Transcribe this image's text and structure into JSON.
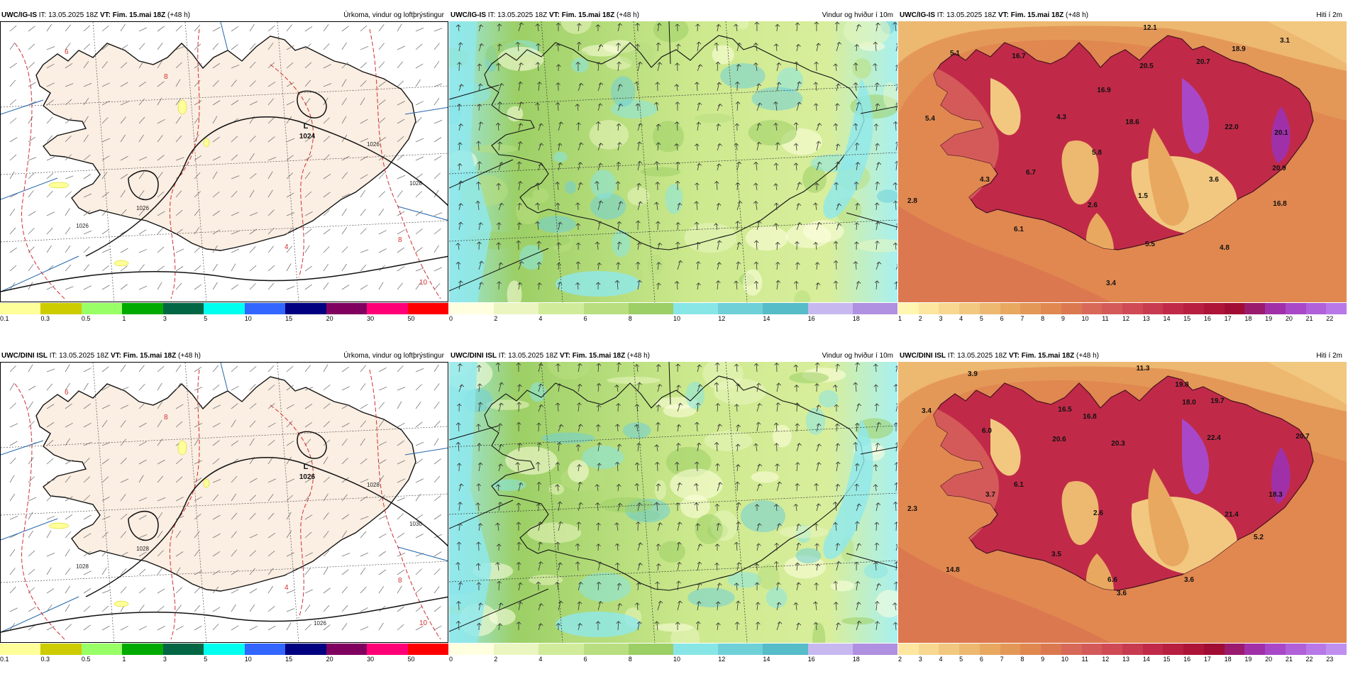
{
  "panels": [
    {
      "model": "UWC/IG-IS",
      "it_label": "IT:",
      "it": "13.05.2025 18Z",
      "vt_label": "VT:",
      "vt": "Fim. 15.mai 18Z",
      "lead": "(+48 h)",
      "title": "Úrkoma, vindur og loftþrýstingur",
      "type": "precip"
    },
    {
      "model": "UWC/IG-IS",
      "it_label": "IT:",
      "it": "13.05.2025 18Z",
      "vt_label": "VT:",
      "vt": "Fim. 15.mai 18Z",
      "lead": "(+48 h)",
      "title": "Vindur og hviður í 10m",
      "type": "wind"
    },
    {
      "model": "UWC/IG-IS",
      "it_label": "IT:",
      "it": "13.05.2025 18Z",
      "vt_label": "VT:",
      "vt": "Fim. 15.mai 18Z",
      "lead": "(+48 h)",
      "title": "Hiti í 2m",
      "type": "temp"
    },
    {
      "model": "UWC/DINI ISL",
      "it_label": "IT:",
      "it": "13.05.2025 18Z",
      "vt_label": "VT:",
      "vt": "Fim. 15.mai 18Z",
      "lead": "(+48 h)",
      "title": "Úrkoma, vindur og loftþrýstingur",
      "type": "precip"
    },
    {
      "model": "UWC/DINI ISL",
      "it_label": "IT:",
      "it": "13.05.2025 18Z",
      "vt_label": "VT:",
      "vt": "Fim. 15.mai 18Z",
      "lead": "(+48 h)",
      "title": "Vindur og hviður í 10m",
      "type": "wind"
    },
    {
      "model": "UWC/DINI ISL",
      "it_label": "IT:",
      "it": "13.05.2025 18Z",
      "vt_label": "VT:",
      "vt": "Fim. 15.mai 18Z",
      "lead": "(+48 h)",
      "title": "Hiti í 2m",
      "type": "temp"
    }
  ],
  "precip_scale": {
    "ticks": [
      "0.1",
      "0.3",
      "0.5",
      "1",
      "3",
      "5",
      "10",
      "15",
      "20",
      "30",
      "50"
    ],
    "colors": [
      "#ffff99",
      "#cccc00",
      "#99ff66",
      "#00aa00",
      "#006644",
      "#00ffee",
      "#3366ff",
      "#000080",
      "#800060",
      "#ff0077",
      "#ff0000"
    ]
  },
  "wind_scale": {
    "ticks": [
      "0",
      "2",
      "4",
      "6",
      "8",
      "10",
      "12",
      "14",
      "16",
      "18"
    ],
    "colors": [
      "#ffffe0",
      "#eaf5c0",
      "#d0ec9a",
      "#b8de80",
      "#9ccf66",
      "#88e6e6",
      "#6fd0d8",
      "#55bcc8",
      "#c8b8f0",
      "#b090e0"
    ]
  },
  "temp_scale_1": {
    "ticks": [
      "1",
      "2",
      "3",
      "4",
      "5",
      "6",
      "7",
      "8",
      "9",
      "10",
      "11",
      "12",
      "13",
      "14",
      "15",
      "16",
      "17",
      "18",
      "19",
      "20",
      "21",
      "22"
    ],
    "colors": [
      "#fff6b0",
      "#fde7a0",
      "#f8d890",
      "#f2c880",
      "#edb870",
      "#e8a860",
      "#e49858",
      "#e08850",
      "#dc7850",
      "#d86858",
      "#d45a5a",
      "#d04a55",
      "#c83a50",
      "#c02a48",
      "#b81e40",
      "#ae1438",
      "#a00c34",
      "#9a1a6e",
      "#a030a8",
      "#a848c8",
      "#b060d8",
      "#b878e8"
    ]
  },
  "temp_scale_2": {
    "ticks": [
      "2",
      "3",
      "4",
      "5",
      "6",
      "7",
      "8",
      "9",
      "10",
      "11",
      "12",
      "13",
      "14",
      "15",
      "16",
      "17",
      "18",
      "19",
      "20",
      "21",
      "22",
      "23"
    ],
    "colors": [
      "#fde7a0",
      "#f8d890",
      "#f2c880",
      "#edb870",
      "#e8a860",
      "#e49858",
      "#e08850",
      "#dc7850",
      "#d86858",
      "#d45a5a",
      "#d04a55",
      "#c83a50",
      "#c02a48",
      "#b81e40",
      "#ae1438",
      "#a00c34",
      "#9a1a6e",
      "#a030a8",
      "#a848c8",
      "#b060d8",
      "#b878e8",
      "#c090f0"
    ]
  },
  "pressure_labels": {
    "top": {
      "low": "L",
      "low_value": "1024",
      "isobars": [
        "1026",
        "1026",
        "1026",
        "1028"
      ]
    },
    "bottom": {
      "low": "L",
      "low_value": "1026",
      "isobars": [
        "1028",
        "1028",
        "1028",
        "1030",
        "1026"
      ]
    }
  },
  "precip_contour_labels": [
    "6",
    "8",
    "4",
    "8",
    "10"
  ],
  "temp_values_top": [
    "12.1",
    "3.1",
    "5.1",
    "16.7",
    "20.7",
    "18.9",
    "20.5",
    "16.9",
    "5.4",
    "4.3",
    "18.6",
    "22.0",
    "20.1",
    "5.8",
    "6.7",
    "4.3",
    "2.8",
    "2.6",
    "1.5",
    "3.6",
    "20.9",
    "16.8",
    "6.1",
    "5.5",
    "4.8",
    "3.4"
  ],
  "temp_values_bottom": [
    "11.3",
    "3.9",
    "19.8",
    "3.4",
    "19.7",
    "18.0",
    "16.5",
    "16.8",
    "6.0",
    "20.6",
    "20.3",
    "22.4",
    "20.7",
    "6.1",
    "3.7",
    "2.3",
    "2.6",
    "21.4",
    "18.3",
    "5.2",
    "3.5",
    "14.8",
    "6.6",
    "3.6",
    "3.6"
  ]
}
